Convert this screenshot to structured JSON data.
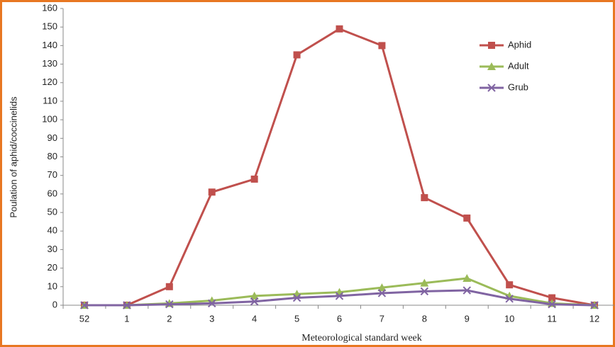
{
  "chart_data": {
    "type": "line",
    "x_label": "Meteorological standard week",
    "y_label": "Poulation of aphid/coccinelids",
    "categories": [
      "52",
      "1",
      "2",
      "3",
      "4",
      "5",
      "6",
      "7",
      "8",
      "9",
      "10",
      "11",
      "12"
    ],
    "series": [
      {
        "name": "Aphid",
        "color": "#c0504d",
        "marker": "square",
        "values": [
          0,
          0,
          10,
          61,
          68,
          135,
          149,
          140,
          58,
          47,
          11,
          4,
          0
        ]
      },
      {
        "name": "Adult",
        "color": "#9bbb59",
        "marker": "triangle",
        "values": [
          0,
          0,
          1,
          2.5,
          5,
          6,
          7,
          9.5,
          12,
          14.5,
          5,
          1,
          0
        ]
      },
      {
        "name": "Grub",
        "color": "#8064a2",
        "marker": "x",
        "values": [
          0,
          0,
          0.5,
          1,
          2,
          4,
          5,
          6.5,
          7.5,
          8,
          3.5,
          0.5,
          0
        ]
      }
    ],
    "ylim": [
      0,
      160
    ],
    "yticks": [
      0,
      10,
      20,
      30,
      40,
      50,
      60,
      70,
      80,
      90,
      100,
      110,
      120,
      130,
      140,
      150,
      160
    ],
    "grid": false,
    "legend": "top-right"
  }
}
